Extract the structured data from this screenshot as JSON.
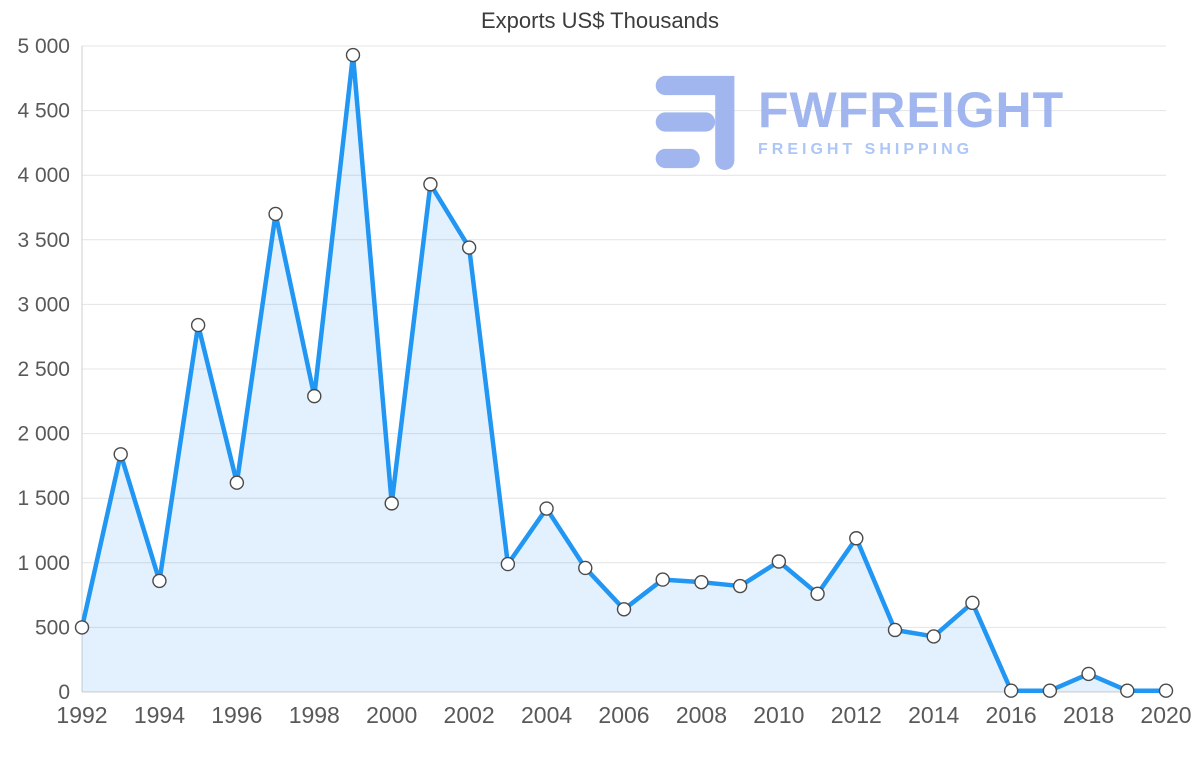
{
  "chart_data": {
    "type": "line",
    "title": "Exports US$ Thousands",
    "xlabel": "",
    "ylabel": "",
    "x": [
      1992,
      1993,
      1994,
      1995,
      1996,
      1997,
      1998,
      1999,
      2000,
      2001,
      2002,
      2003,
      2004,
      2005,
      2006,
      2007,
      2008,
      2009,
      2010,
      2011,
      2012,
      2013,
      2014,
      2015,
      2016,
      2017,
      2018,
      2019,
      2020
    ],
    "series": [
      {
        "name": "Exports US$ Thousands",
        "values": [
          500,
          1840,
          860,
          2840,
          1620,
          3700,
          2290,
          4930,
          1460,
          3930,
          3440,
          990,
          1420,
          960,
          640,
          870,
          850,
          820,
          1010,
          760,
          1190,
          480,
          430,
          690,
          10,
          10,
          140,
          10,
          10
        ]
      }
    ],
    "ylim": [
      0,
      5000
    ],
    "yticks": [
      0,
      500,
      1000,
      1500,
      2000,
      2500,
      3000,
      3500,
      4000,
      4500,
      5000
    ],
    "ytick_labels": [
      "0",
      "500",
      "1 000",
      "1 500",
      "2 000",
      "2 500",
      "3 000",
      "3 500",
      "4 000",
      "4 500",
      "5 000"
    ],
    "xticks": [
      1992,
      1994,
      1996,
      1998,
      2000,
      2002,
      2004,
      2006,
      2008,
      2010,
      2012,
      2014,
      2016,
      2018,
      2020
    ],
    "grid": "horizontal",
    "legend": "none",
    "line_color": "#2196f3",
    "area_color": "rgba(33,150,243,0.13)",
    "marker_fill": "#ffffff",
    "marker_stroke": "#4a4a4a",
    "gridline_color": "#e4e4e4",
    "axis_color": "#cfcfcf",
    "tick_label_color": "#595959"
  },
  "watermark": {
    "name": "FWFREIGHT",
    "subtitle": "FREIGHT SHIPPING",
    "color": "#9cb3ee"
  }
}
